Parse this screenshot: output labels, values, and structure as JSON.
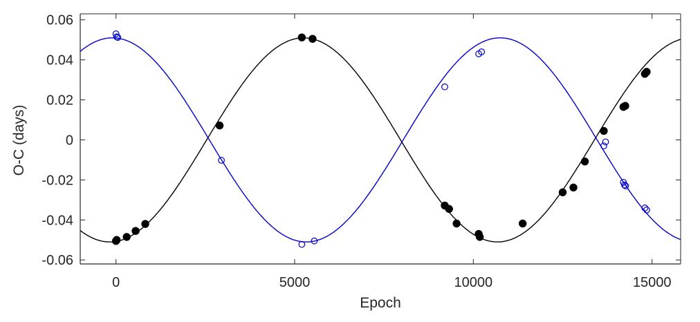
{
  "chart_data": {
    "type": "scatter",
    "title": "",
    "xlabel": "Epoch",
    "ylabel": "O-C (days)",
    "xlim": [
      -1000,
      15800
    ],
    "ylim": [
      -0.062,
      0.063
    ],
    "xticks": [
      0,
      5000,
      10000,
      15000
    ],
    "xtick_labels": [
      "0",
      "5000",
      "10000",
      "15000"
    ],
    "yticks": [
      -0.06,
      -0.04,
      -0.02,
      0,
      0.02,
      0.04,
      0.06
    ],
    "ytick_labels": [
      "-0.06",
      "-0.04",
      "-0.02",
      "0",
      "0.02",
      "0.04",
      "0.06"
    ],
    "grid": false,
    "legend": "none",
    "series": [
      {
        "style": "filled-circle",
        "color": "#000000",
        "points": [
          {
            "x": 0,
            "y": -0.0505
          },
          {
            "x": 20,
            "y": -0.05
          },
          {
            "x": 300,
            "y": -0.0485
          },
          {
            "x": 550,
            "y": -0.0455
          },
          {
            "x": 820,
            "y": -0.042
          },
          {
            "x": 2900,
            "y": 0.0072
          },
          {
            "x": 5200,
            "y": 0.0512
          },
          {
            "x": 5500,
            "y": 0.0505
          },
          {
            "x": 9200,
            "y": -0.0328
          },
          {
            "x": 9320,
            "y": -0.0345
          },
          {
            "x": 9530,
            "y": -0.0418
          },
          {
            "x": 10150,
            "y": -0.047
          },
          {
            "x": 10180,
            "y": -0.0485
          },
          {
            "x": 11380,
            "y": -0.0418
          },
          {
            "x": 12500,
            "y": -0.0262
          },
          {
            "x": 12800,
            "y": -0.0238
          },
          {
            "x": 13120,
            "y": -0.0108
          },
          {
            "x": 13650,
            "y": 0.0045
          },
          {
            "x": 14200,
            "y": 0.0165
          },
          {
            "x": 14250,
            "y": 0.017
          },
          {
            "x": 14800,
            "y": 0.033
          },
          {
            "x": 14850,
            "y": 0.034
          }
        ]
      },
      {
        "style": "open-circle",
        "color": "#0000cc",
        "points": [
          {
            "x": 0,
            "y": 0.053
          },
          {
            "x": 20,
            "y": 0.0515
          },
          {
            "x": 50,
            "y": 0.0512
          },
          {
            "x": 2950,
            "y": -0.0102
          },
          {
            "x": 5200,
            "y": -0.0522
          },
          {
            "x": 5550,
            "y": -0.0505
          },
          {
            "x": 9200,
            "y": 0.0265
          },
          {
            "x": 10150,
            "y": 0.043
          },
          {
            "x": 10230,
            "y": 0.044
          },
          {
            "x": 13650,
            "y": -0.003
          },
          {
            "x": 13700,
            "y": -0.001
          },
          {
            "x": 14200,
            "y": -0.0212
          },
          {
            "x": 14230,
            "y": -0.0225
          },
          {
            "x": 14260,
            "y": -0.023
          },
          {
            "x": 14800,
            "y": -0.034
          },
          {
            "x": 14850,
            "y": -0.035
          }
        ]
      }
    ],
    "fit_curves": [
      {
        "color": "#000000",
        "amplitude": 0.051,
        "period": 10850,
        "peak_epoch": 5250
      },
      {
        "color": "#0000cc",
        "amplitude": 0.051,
        "period": 10850,
        "peak_epoch": -100
      }
    ]
  }
}
